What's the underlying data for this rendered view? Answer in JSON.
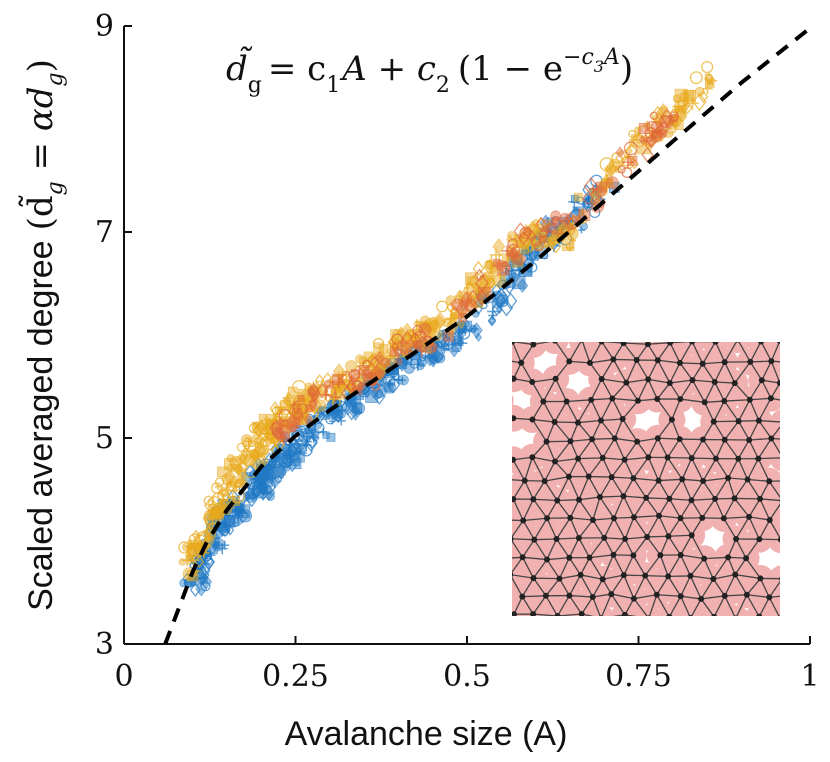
{
  "chart_data": {
    "type": "scatter",
    "title": "",
    "formula": {
      "lhs": "d̃",
      "lhs_sub": "g",
      "rhs_1": "= c",
      "rhs_1_sub": "1",
      "rhs_2": "A + c",
      "rhs_2_sub": "2",
      "rhs_3": "(1 − e",
      "rhs_3_sup": "−c",
      "rhs_3_sup_sub": "3",
      "rhs_3_sup_tail": "A",
      "rhs_4": ")"
    },
    "xlabel": "Avalanche size (A)",
    "ylabel_main": "Scaled averaged degree",
    "ylabel_paren": "(d̃",
    "ylabel_sub1": "g",
    "ylabel_mid": " = αd",
    "ylabel_sub2": "g",
    "ylabel_close": ")",
    "xlim": [
      0,
      1
    ],
    "ylim": [
      3,
      9
    ],
    "xticks": [
      0,
      0.25,
      0.5,
      0.75,
      1
    ],
    "xtick_labels": [
      "0",
      "0.25",
      "0.5",
      "0.75",
      "1"
    ],
    "yticks": [
      3,
      5,
      7,
      9
    ],
    "ytick_labels": [
      "3",
      "5",
      "7",
      "9"
    ],
    "grid": false,
    "fit_curve": {
      "label": "fit",
      "x": [
        0.06,
        0.08,
        0.1,
        0.12,
        0.15,
        0.2,
        0.25,
        0.3,
        0.4,
        0.5,
        0.6,
        0.7,
        0.8,
        0.9,
        1.0
      ],
      "y": [
        3.0,
        3.35,
        3.7,
        3.98,
        4.3,
        4.72,
        5.02,
        5.27,
        5.72,
        6.18,
        6.72,
        7.3,
        7.88,
        8.45,
        8.98
      ]
    },
    "series": [
      {
        "color": "#1f77c4",
        "x": [
          0.1,
          0.12,
          0.14,
          0.16,
          0.18,
          0.2,
          0.22,
          0.25,
          0.28,
          0.32,
          0.36,
          0.4,
          0.45,
          0.5,
          0.55,
          0.6,
          0.65,
          0.7
        ],
        "y": [
          3.6,
          3.85,
          4.1,
          4.3,
          4.45,
          4.58,
          4.72,
          4.9,
          5.1,
          5.3,
          5.5,
          5.7,
          5.88,
          6.05,
          6.4,
          6.85,
          7.1,
          7.5
        ]
      },
      {
        "color": "#e8a91a",
        "x": [
          0.09,
          0.11,
          0.13,
          0.15,
          0.17,
          0.19,
          0.21,
          0.23,
          0.25,
          0.28,
          0.32,
          0.36,
          0.4,
          0.45,
          0.5,
          0.55,
          0.6,
          0.65,
          0.72,
          0.78,
          0.82,
          0.85
        ],
        "y": [
          3.75,
          4.0,
          4.25,
          4.5,
          4.75,
          4.9,
          5.05,
          5.15,
          5.3,
          5.4,
          5.55,
          5.7,
          5.9,
          6.05,
          6.3,
          6.7,
          7.0,
          6.95,
          7.7,
          8.0,
          8.25,
          8.5
        ]
      },
      {
        "color": "#e0663a",
        "x": [
          0.2,
          0.25,
          0.3,
          0.35,
          0.4,
          0.45,
          0.5,
          0.55,
          0.6,
          0.65,
          0.7,
          0.76,
          0.8
        ],
        "y": [
          5.0,
          5.2,
          5.45,
          5.55,
          5.85,
          6.0,
          6.35,
          6.75,
          6.95,
          7.1,
          7.45,
          7.9,
          8.1
        ]
      }
    ],
    "inset": {
      "description_visible": false
    }
  }
}
